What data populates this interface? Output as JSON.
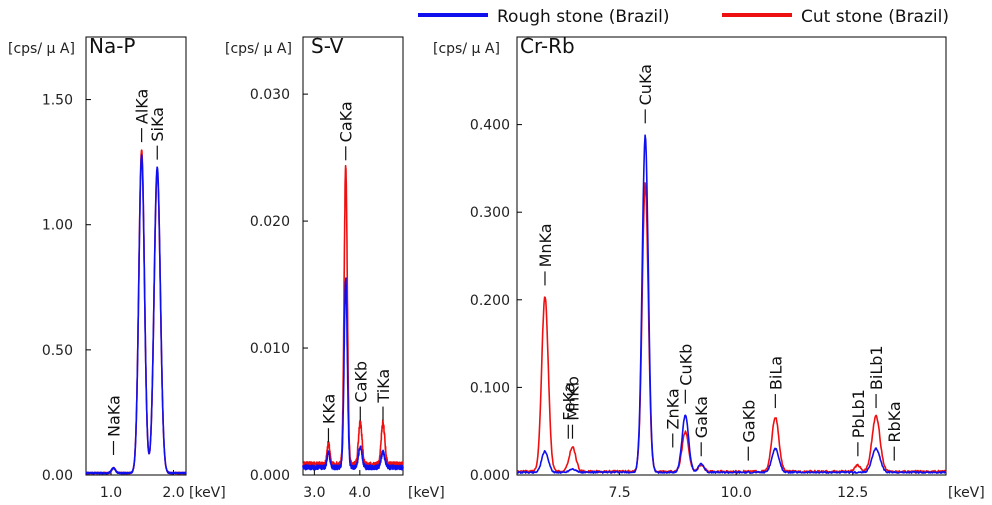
{
  "legend": [
    {
      "label": "Rough stone (Brazil)",
      "color": "#1010ee"
    },
    {
      "label": "Cut stone (Brazil)",
      "color": "#ee1010"
    }
  ],
  "chart_data": [
    {
      "type": "line",
      "title": "Na-P",
      "ylabel": "[cps/ μ A]",
      "xlabel": "[keV]",
      "xlim": [
        0.6,
        2.2
      ],
      "ylim": [
        0.0,
        1.75
      ],
      "xticks": [
        {
          "v": 1.0,
          "label": "1.0"
        },
        {
          "v": 2.0,
          "label": "2.0"
        }
      ],
      "yticks": [
        {
          "v": 0.0,
          "label": "0.00"
        },
        {
          "v": 0.5,
          "label": "0.50"
        },
        {
          "v": 1.0,
          "label": "1.00"
        },
        {
          "v": 1.5,
          "label": "1.50"
        }
      ],
      "peaks": [
        {
          "label": "NaKa",
          "x": 1.04,
          "y": 0.04
        },
        {
          "label": "AlKa",
          "x": 1.49,
          "y": 1.29
        },
        {
          "label": "SiKa",
          "x": 1.74,
          "y": 1.22
        }
      ],
      "series": [
        {
          "name": "Rough stone (Brazil)",
          "color": "#1010ee",
          "baseline": 0.008,
          "gaussians": [
            [
              1.04,
              0.02,
              0.03
            ],
            [
              1.49,
              1.27,
              0.045
            ],
            [
              1.74,
              1.22,
              0.05
            ]
          ]
        },
        {
          "name": "Cut stone (Brazil)",
          "color": "#ee1010",
          "baseline": 0.008,
          "gaussians": [
            [
              1.04,
              0.02,
              0.03
            ],
            [
              1.49,
              1.29,
              0.045
            ],
            [
              1.74,
              1.2,
              0.05
            ]
          ]
        }
      ]
    },
    {
      "type": "line",
      "title": "S-V",
      "ylabel": "[cps/ μ A]",
      "xlabel": "[keV]",
      "xlim": [
        2.75,
        4.95
      ],
      "ylim": [
        0.0,
        0.0345
      ],
      "xticks": [
        {
          "v": 3.0,
          "label": "3.0"
        },
        {
          "v": 4.0,
          "label": "4.0"
        }
      ],
      "yticks": [
        {
          "v": 0.0,
          "label": "0.000"
        },
        {
          "v": 0.01,
          "label": "0.010"
        },
        {
          "v": 0.02,
          "label": "0.020"
        },
        {
          "v": 0.03,
          "label": "0.030"
        }
      ],
      "peaks": [
        {
          "label": "KKa",
          "x": 3.31,
          "y": 0.0018
        },
        {
          "label": "CaKa",
          "x": 3.69,
          "y": 0.024
        },
        {
          "label": "CaKb",
          "x": 4.01,
          "y": 0.0035
        },
        {
          "label": "TiKa",
          "x": 4.51,
          "y": 0.0035
        }
      ],
      "series": [
        {
          "name": "Rough stone (Brazil)",
          "color": "#1010ee",
          "baseline": 0.0006,
          "gaussians": [
            [
              3.31,
              0.0012,
              0.03
            ],
            [
              3.69,
              0.0148,
              0.035
            ],
            [
              4.01,
              0.0016,
              0.04
            ],
            [
              4.51,
              0.0012,
              0.04
            ]
          ]
        },
        {
          "name": "Cut stone (Brazil)",
          "color": "#ee1010",
          "baseline": 0.0008,
          "gaussians": [
            [
              3.31,
              0.0017,
              0.03
            ],
            [
              3.69,
              0.0235,
              0.035
            ],
            [
              4.01,
              0.0033,
              0.04
            ],
            [
              4.51,
              0.0033,
              0.04
            ]
          ]
        }
      ]
    },
    {
      "type": "line",
      "title": "Cr-Rb",
      "ylabel": "[cps/ μ A]",
      "xlabel": "[keV]",
      "xlim": [
        5.3,
        14.5
      ],
      "ylim": [
        0.0,
        0.5
      ],
      "xticks": [
        {
          "v": 7.5,
          "label": "7.5"
        },
        {
          "v": 10.0,
          "label": "10.0"
        },
        {
          "v": 12.5,
          "label": "12.5"
        }
      ],
      "yticks": [
        {
          "v": 0.0,
          "label": "0.000"
        },
        {
          "v": 0.1,
          "label": "0.100"
        },
        {
          "v": 0.2,
          "label": "0.200"
        },
        {
          "v": 0.3,
          "label": "0.300"
        },
        {
          "v": 0.4,
          "label": "0.400"
        }
      ],
      "peaks": [
        {
          "label": "MnKa",
          "x": 5.9,
          "y": 0.205
        },
        {
          "label": "MnKb",
          "x": 6.49,
          "y": 0.03
        },
        {
          "label": "FeKa",
          "x": 6.4,
          "y": 0.03
        },
        {
          "label": "CuKa",
          "x": 8.05,
          "y": 0.39
        },
        {
          "label": "ZnKa",
          "x": 8.64,
          "y": 0.02
        },
        {
          "label": "CuKb",
          "x": 8.91,
          "y": 0.07
        },
        {
          "label": "GaKa",
          "x": 9.25,
          "y": 0.01
        },
        {
          "label": "GaKb",
          "x": 10.26,
          "y": 0.005
        },
        {
          "label": "BiLa",
          "x": 10.84,
          "y": 0.065
        },
        {
          "label": "PbLb1",
          "x": 12.61,
          "y": 0.01
        },
        {
          "label": "BiLb1",
          "x": 13.0,
          "y": 0.065
        },
        {
          "label": "RbKa",
          "x": 13.39,
          "y": 0.005
        }
      ],
      "series": [
        {
          "name": "Rough stone (Brazil)",
          "color": "#1010ee",
          "baseline": 0.003,
          "gaussians": [
            [
              5.9,
              0.024,
              0.07
            ],
            [
              6.49,
              0.004,
              0.07
            ],
            [
              8.05,
              0.385,
              0.065
            ],
            [
              8.91,
              0.065,
              0.07
            ],
            [
              9.25,
              0.01,
              0.06
            ],
            [
              10.84,
              0.027,
              0.075
            ],
            [
              13.0,
              0.027,
              0.085
            ]
          ]
        },
        {
          "name": "Cut stone (Brazil)",
          "color": "#ee1010",
          "baseline": 0.004,
          "gaussians": [
            [
              5.9,
              0.2,
              0.07
            ],
            [
              6.49,
              0.028,
              0.07
            ],
            [
              8.05,
              0.33,
              0.065
            ],
            [
              8.91,
              0.045,
              0.07
            ],
            [
              9.25,
              0.008,
              0.06
            ],
            [
              10.84,
              0.062,
              0.075
            ],
            [
              12.61,
              0.007,
              0.06
            ],
            [
              13.0,
              0.063,
              0.085
            ]
          ]
        }
      ]
    }
  ]
}
